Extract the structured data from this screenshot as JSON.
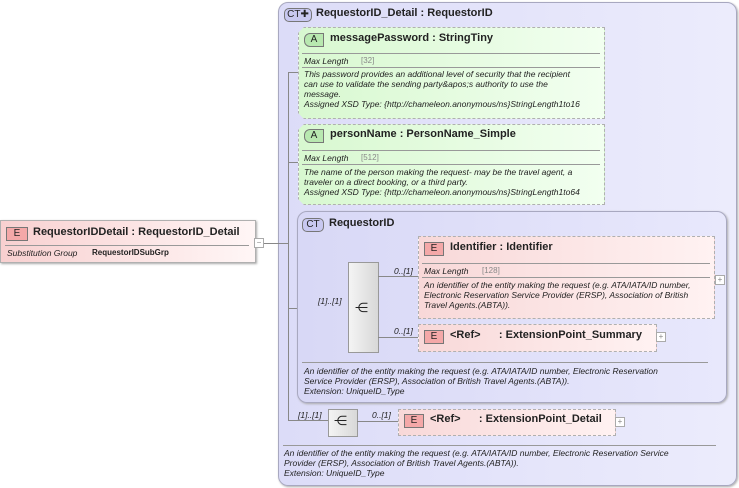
{
  "root_element": {
    "badge": "E",
    "name": "RequestorIDDetail",
    "type": ": RequestorID_Detail",
    "sub_label": "Substitution Group",
    "sub_value": "RequestorIDSubGrp",
    "collapse": "−"
  },
  "complex_type": {
    "badge": "CT",
    "name": "RequestorID_Detail",
    "type": ": RequestorID",
    "attributes": [
      {
        "badge": "A",
        "name": "messagePassword",
        "type": ": StringTiny",
        "facet": "Max Length",
        "facet_value": "[32]",
        "desc": [
          "This password provides an additional level of security that the recipient",
          "can use to validate the sending party&apos;s authority to use the",
          "message.",
          "Assigned XSD Type: {http://chameleon.anonymous/ns}StringLength1to16"
        ]
      },
      {
        "badge": "A",
        "name": "personName",
        "type": ": PersonName_Simple",
        "facet": "Max Length",
        "facet_value": "[512]",
        "desc": [
          "The name of the person making the request- may be the travel agent, a",
          "traveler on a direct booking, or a third party.",
          "Assigned XSD Type: {http://chameleon.anonymous/ns}StringLength1to64"
        ]
      }
    ],
    "base_type": {
      "badge": "CT",
      "name": "RequestorID",
      "seq_card": "[1]..[1]",
      "children": [
        {
          "badge": "E",
          "name": "Identifier",
          "type": ": Identifier",
          "card": "0..[1]",
          "facet": "Max Length",
          "facet_value": "[128]",
          "desc": [
            "An identifier of the entity making the request (e.g. ATA/IATA/ID number,",
            "Electronic Reservation Service Provider (ERSP), Association of British",
            "Travel Agents.(ABTA))."
          ],
          "expand": "+"
        },
        {
          "badge": "E",
          "name": "<Ref>",
          "type": ": ExtensionPoint_Summary",
          "card": "0..[1]",
          "expand": "+"
        }
      ],
      "desc": [
        "An identifier of the entity making the request (e.g. ATA/IATA/ID number, Electronic Reservation",
        "Service Provider (ERSP), Association of British Travel Agents.(ABTA)).",
        "Extension: UniqueID_Type"
      ]
    },
    "seq_card": "[1]..[1]",
    "ext": {
      "badge": "E",
      "name": "<Ref>",
      "type": ": ExtensionPoint_Detail",
      "card": "0..[1]",
      "expand": "+"
    },
    "desc": [
      "An identifier of the entity making the request (e.g. ATA/IATA/ID number, Electronic Reservation Service",
      "Provider (ERSP), Association of British Travel Agents.(ABTA)).",
      "Extension: UniqueID_Type"
    ]
  }
}
